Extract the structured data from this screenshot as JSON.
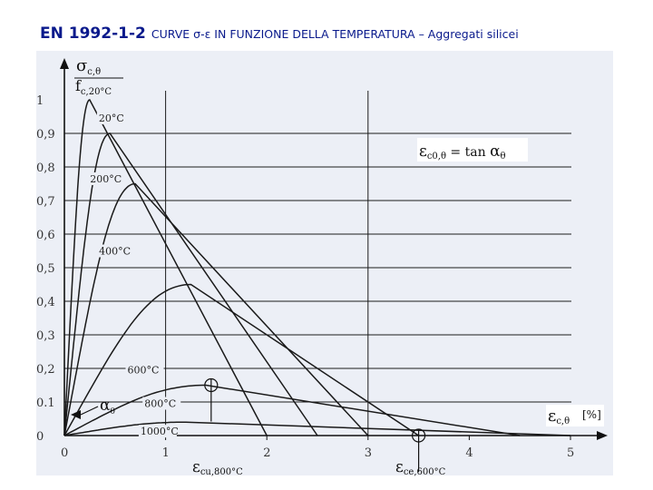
{
  "header": {
    "code": "EN 1992-1-2",
    "subtitle": "CURVE σ-ε IN FUNZIONE DELLA TEMPERATURA – Aggregati silicei"
  },
  "chart_data": {
    "type": "line",
    "x_unit": "[%]",
    "xlim": [
      0,
      5
    ],
    "ylim": [
      0,
      1
    ],
    "x_ticks": [
      "0",
      "1",
      "2",
      "3",
      "4",
      "5"
    ],
    "y_ticks": [
      "0",
      "0.1",
      "0,2",
      "0,3",
      "0,4",
      "0,5",
      "0,6",
      "0,7",
      "0,8",
      "0,9",
      "1"
    ],
    "grid": true,
    "series": [
      {
        "name": "20°C",
        "peak_strain": 0.25,
        "peak_stress": 1.0,
        "ultimate_strain": 2.0,
        "label": "20°C"
      },
      {
        "name": "200°C",
        "peak_strain": 0.45,
        "peak_stress": 0.9,
        "ultimate_strain": 2.5,
        "label": "200°C"
      },
      {
        "name": "400°C",
        "peak_strain": 0.7,
        "peak_stress": 0.75,
        "ultimate_strain": 3.0,
        "label": "400°C"
      },
      {
        "name": "600°C",
        "peak_strain": 1.25,
        "peak_stress": 0.45,
        "ultimate_strain": 3.5,
        "label": "600°C"
      },
      {
        "name": "800°C",
        "peak_strain": 1.4,
        "peak_stress": 0.15,
        "ultimate_strain": 4.5,
        "label": "800°C"
      },
      {
        "name": "1000°C",
        "peak_strain": 1.2,
        "peak_stress": 0.04,
        "ultimate_strain": 5.0,
        "label": "1000°C"
      }
    ],
    "markers": [
      {
        "x": 1.45,
        "y": 0.15
      },
      {
        "x": 3.5,
        "y": 0.0
      }
    ]
  },
  "axes": {
    "y_label_top": "σ",
    "y_label_top_sub": "c,θ",
    "y_label_bottom": "f",
    "y_label_bottom_sub": "c,20°C",
    "x_label": "ε",
    "x_label_sub": "c,θ",
    "slope_label": "α",
    "slope_label_sub": "θ"
  },
  "annotations": {
    "formula_lhs": "ε",
    "formula_lhs_sub": "c0,θ",
    "formula_mid": " = tan ",
    "formula_rhs": "α",
    "formula_rhs_sub": "θ",
    "ecu_label": "ε",
    "ecu_sub": "cu,800°C",
    "ece_label": "ε",
    "ece_sub": "ce,600°C"
  },
  "colors": {
    "panel": "#eceff6",
    "text_blue": "#0a1a8c",
    "curve": "#1a1a1a"
  }
}
